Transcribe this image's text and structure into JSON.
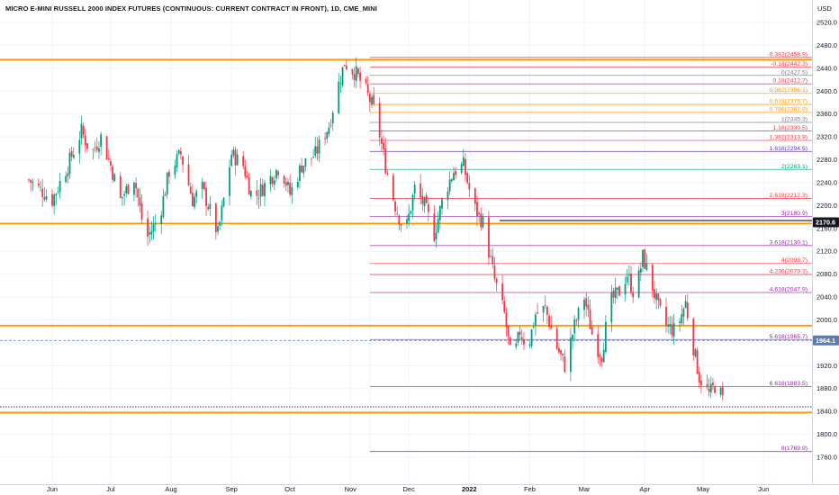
{
  "chart_data": {
    "type": "candlestick",
    "title": "MICRO E-MINI RUSSELL 2000 INDEX FUTURES (CONTINUOUS: CURRENT CONTRACT IN FRONT), 1D, CME_MINI",
    "currency": "USD",
    "ylim": [
      1735,
      2535
    ],
    "y_ticks": [
      1760,
      1800,
      1840,
      1880,
      1920,
      1960,
      2000,
      2040,
      2080,
      2120,
      2160,
      2200,
      2240,
      2280,
      2320,
      2360,
      2400,
      2440,
      2480,
      2520
    ],
    "x_ticks": [
      {
        "label": "Jun",
        "day": 0
      },
      {
        "label": "Jul",
        "day": 30
      },
      {
        "label": "Aug",
        "day": 61
      },
      {
        "label": "Sep",
        "day": 92
      },
      {
        "label": "Oct",
        "day": 122
      },
      {
        "label": "Nov",
        "day": 153
      },
      {
        "label": "Dec",
        "day": 183
      },
      {
        "label": "2022",
        "day": 214
      },
      {
        "label": "Feb",
        "day": 245
      },
      {
        "label": "Mar",
        "day": 273
      },
      {
        "label": "Apr",
        "day": 304
      },
      {
        "label": "May",
        "day": 334
      },
      {
        "label": "Jun",
        "day": 365
      }
    ],
    "price_labels": [
      {
        "value": 2170.6,
        "text": "2170.6",
        "bg": "#131722"
      },
      {
        "value": 1964.1,
        "text": "1964.1",
        "bg": "#5b7db6"
      }
    ],
    "support_resistance": [
      2455,
      2168.5,
      1990,
      1838
    ],
    "fib_levels": [
      {
        "ratio": "-0.382",
        "value": 2458.9,
        "color": "#f23645"
      },
      {
        "ratio": "-0.18",
        "value": 2442.3,
        "color": "#f23645"
      },
      {
        "ratio": "0",
        "value": 2427.5,
        "color": "#787b86"
      },
      {
        "ratio": "0.18",
        "value": 2412.7,
        "color": "#f23645"
      },
      {
        "ratio": "0.382",
        "value": 2396.1,
        "color": "#ff9800"
      },
      {
        "ratio": "0.618",
        "value": 2376.7,
        "color": "#ff9800"
      },
      {
        "ratio": "0.786",
        "value": 2362.9,
        "color": "#ff9800"
      },
      {
        "ratio": "1",
        "value": 2345.3,
        "color": "#787b86"
      },
      {
        "ratio": "1.18",
        "value": 2330.5,
        "color": "#f23645"
      },
      {
        "ratio": "1.382",
        "value": 2313.9,
        "color": "#f23645"
      },
      {
        "ratio": "1.618",
        "value": 2294.5,
        "color": "#673ab7"
      },
      {
        "ratio": "2",
        "value": 2263.1,
        "color": "#089981"
      },
      {
        "ratio": "2.618",
        "value": 2212.3,
        "color": "#f23645"
      },
      {
        "ratio": "3",
        "value": 2180.9,
        "color": "#9c27b0"
      },
      {
        "ratio": "3.618",
        "value": 2130.1,
        "color": "#9c27b0"
      },
      {
        "ratio": "4",
        "value": 2098.7,
        "color": "#f23645"
      },
      {
        "ratio": "4.236",
        "value": 2079.3,
        "color": "#f23645"
      },
      {
        "ratio": "4.618",
        "value": 2047.9,
        "color": "#9c27b0"
      },
      {
        "ratio": "5.618",
        "value": 1965.7,
        "color": "#9c27b0"
      },
      {
        "ratio": "6.618",
        "value": 1883.5,
        "color": "#9c27b0"
      },
      {
        "ratio": "8",
        "value": 1769.9,
        "color": "#9c27b0"
      }
    ],
    "price_path": [
      [
        -12,
        2245
      ],
      [
        0,
        2210
      ],
      [
        8,
        2270
      ],
      [
        15,
        2330
      ],
      [
        20,
        2290
      ],
      [
        25,
        2320
      ],
      [
        30,
        2270
      ],
      [
        35,
        2210
      ],
      [
        42,
        2250
      ],
      [
        48,
        2140
      ],
      [
        55,
        2180
      ],
      [
        60,
        2260
      ],
      [
        66,
        2290
      ],
      [
        72,
        2210
      ],
      [
        77,
        2230
      ],
      [
        85,
        2150
      ],
      [
        92,
        2290
      ],
      [
        98,
        2270
      ],
      [
        103,
        2210
      ],
      [
        110,
        2240
      ],
      [
        117,
        2270
      ],
      [
        122,
        2220
      ],
      [
        128,
        2270
      ],
      [
        135,
        2290
      ],
      [
        142,
        2340
      ],
      [
        146,
        2400
      ],
      [
        150,
        2450
      ],
      [
        156,
        2430
      ],
      [
        161,
        2400
      ],
      [
        166,
        2360
      ],
      [
        171,
        2270
      ],
      [
        176,
        2200
      ],
      [
        181,
        2150
      ],
      [
        186,
        2230
      ],
      [
        191,
        2200
      ],
      [
        196,
        2150
      ],
      [
        201,
        2220
      ],
      [
        206,
        2260
      ],
      [
        211,
        2270
      ],
      [
        216,
        2200
      ],
      [
        221,
        2170
      ],
      [
        227,
        2070
      ],
      [
        232,
        2010
      ],
      [
        236,
        1920
      ],
      [
        240,
        1980
      ],
      [
        244,
        1950
      ],
      [
        248,
        2010
      ],
      [
        253,
        2020
      ],
      [
        258,
        1960
      ],
      [
        263,
        1920
      ],
      [
        268,
        1990
      ],
      [
        273,
        2040
      ],
      [
        278,
        1960
      ],
      [
        282,
        1940
      ],
      [
        286,
        2030
      ],
      [
        291,
        2050
      ],
      [
        295,
        2080
      ],
      [
        299,
        2040
      ],
      [
        303,
        2110
      ],
      [
        307,
        2070
      ],
      [
        311,
        2020
      ],
      [
        315,
        1990
      ],
      [
        320,
        1980
      ],
      [
        325,
        2030
      ],
      [
        328,
        1970
      ],
      [
        332,
        1900
      ],
      [
        337,
        1870
      ],
      [
        341,
        1890
      ],
      [
        344,
        1860
      ]
    ]
  }
}
